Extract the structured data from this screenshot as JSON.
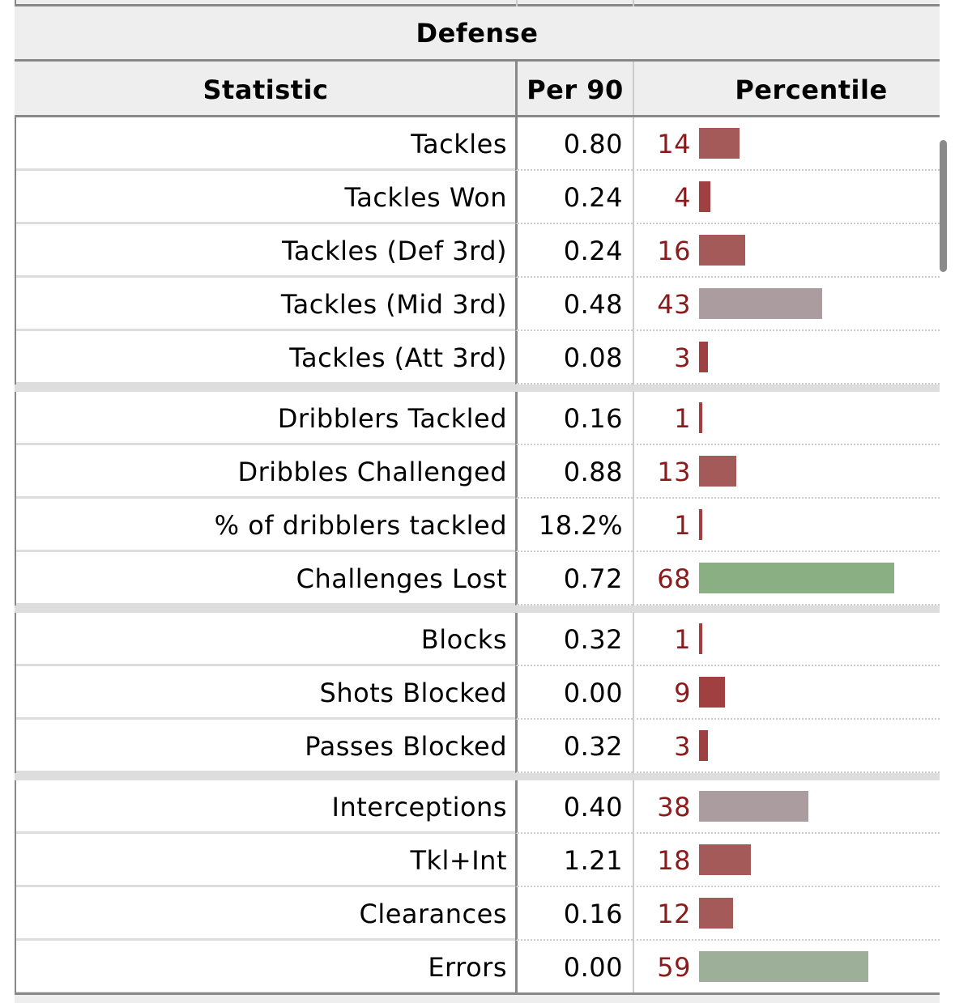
{
  "table": {
    "title": "Defense",
    "headers": {
      "statistic": "Statistic",
      "per90": "Per 90",
      "percentile": "Percentile"
    },
    "colors": {
      "low": "#a55a5a",
      "very_low": "#a04040",
      "mid": "#ab9d9f",
      "high": "#8aaf82",
      "high_alt": "#9eaf99",
      "percentile_text": "#8b1a1a"
    },
    "groups": [
      {
        "rows": [
          {
            "statistic": "Tackles",
            "per90": "0.80",
            "percentile": 14,
            "bar_color": "#a55a5a"
          },
          {
            "statistic": "Tackles Won",
            "per90": "0.24",
            "percentile": 4,
            "bar_color": "#a04040"
          },
          {
            "statistic": "Tackles (Def 3rd)",
            "per90": "0.24",
            "percentile": 16,
            "bar_color": "#a55a5a"
          },
          {
            "statistic": "Tackles (Mid 3rd)",
            "per90": "0.48",
            "percentile": 43,
            "bar_color": "#ab9d9f"
          },
          {
            "statistic": "Tackles (Att 3rd)",
            "per90": "0.08",
            "percentile": 3,
            "bar_color": "#a04040"
          }
        ]
      },
      {
        "rows": [
          {
            "statistic": "Dribblers Tackled",
            "per90": "0.16",
            "percentile": 1,
            "bar_color": "#a04040"
          },
          {
            "statistic": "Dribbles Challenged",
            "per90": "0.88",
            "percentile": 13,
            "bar_color": "#a55a5a"
          },
          {
            "statistic": "% of dribblers tackled",
            "per90": "18.2%",
            "percentile": 1,
            "bar_color": "#a04040"
          },
          {
            "statistic": "Challenges Lost",
            "per90": "0.72",
            "percentile": 68,
            "bar_color": "#8aaf82"
          }
        ]
      },
      {
        "rows": [
          {
            "statistic": "Blocks",
            "per90": "0.32",
            "percentile": 1,
            "bar_color": "#a04040"
          },
          {
            "statistic": "Shots Blocked",
            "per90": "0.00",
            "percentile": 9,
            "bar_color": "#a04040"
          },
          {
            "statistic": "Passes Blocked",
            "per90": "0.32",
            "percentile": 3,
            "bar_color": "#a04040"
          }
        ]
      },
      {
        "rows": [
          {
            "statistic": "Interceptions",
            "per90": "0.40",
            "percentile": 38,
            "bar_color": "#ab9d9f"
          },
          {
            "statistic": "Tkl+Int",
            "per90": "1.21",
            "percentile": 18,
            "bar_color": "#a55a5a"
          },
          {
            "statistic": "Clearances",
            "per90": "0.16",
            "percentile": 12,
            "bar_color": "#a55a5a"
          },
          {
            "statistic": "Errors",
            "per90": "0.00",
            "percentile": 59,
            "bar_color": "#9eaf99"
          }
        ]
      }
    ]
  }
}
